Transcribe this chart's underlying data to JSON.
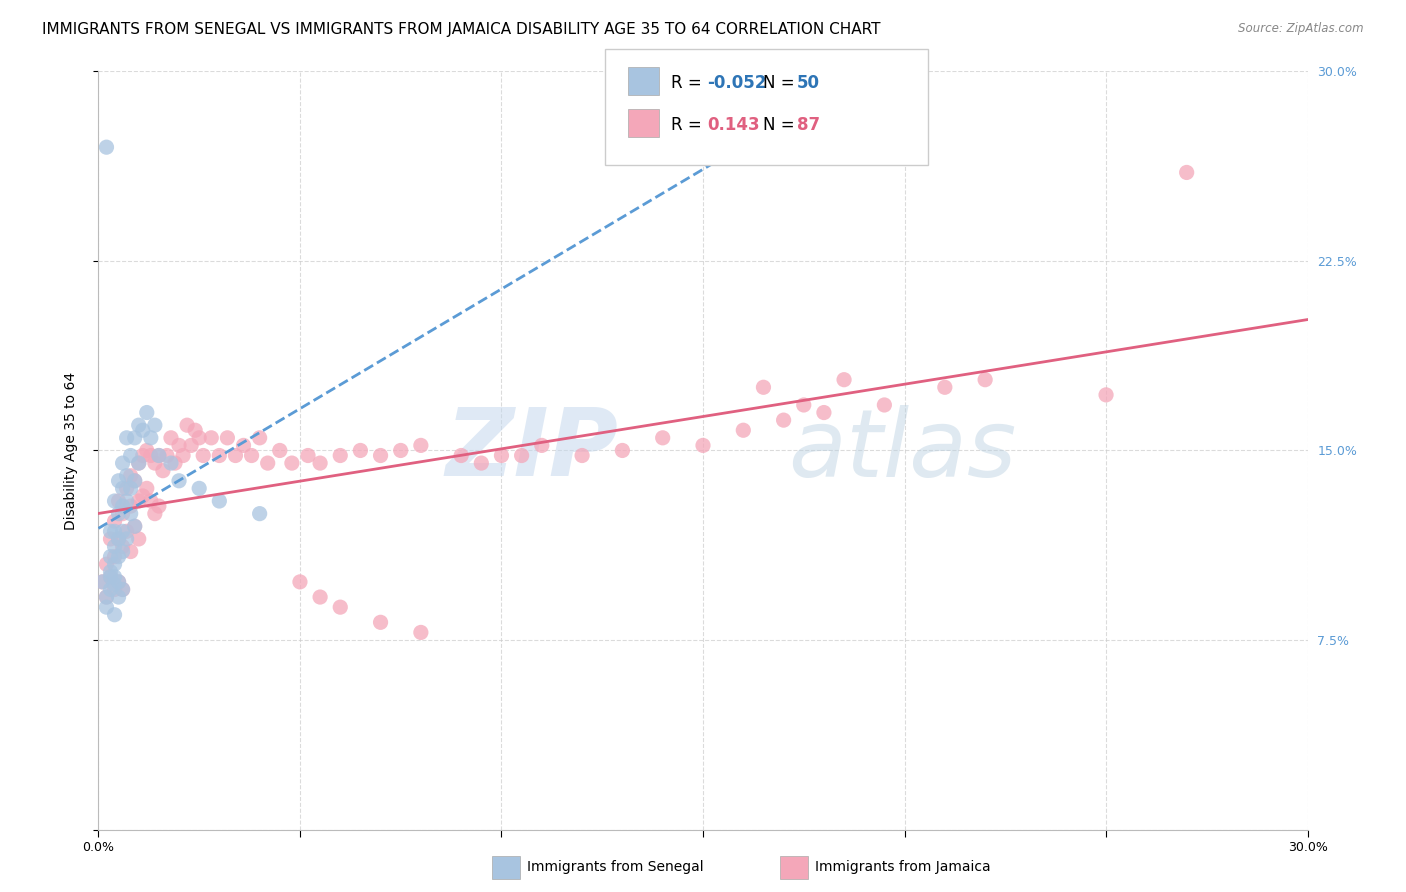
{
  "title": "IMMIGRANTS FROM SENEGAL VS IMMIGRANTS FROM JAMAICA DISABILITY AGE 35 TO 64 CORRELATION CHART",
  "source": "Source: ZipAtlas.com",
  "ylabel": "Disability Age 35 to 64",
  "xlim": [
    0.0,
    0.3
  ],
  "ylim": [
    0.0,
    0.3
  ],
  "color_senegal": "#a8c4e0",
  "color_jamaica": "#f4a7b9",
  "line_color_senegal": "#5b9bd5",
  "line_color_jamaica": "#e06080",
  "R_senegal": -0.052,
  "N_senegal": 50,
  "R_jamaica": 0.143,
  "N_jamaica": 87,
  "watermark_color": "#c8d8e8",
  "background_color": "#ffffff",
  "grid_color": "#cccccc",
  "title_fontsize": 11,
  "axis_label_fontsize": 10,
  "tick_fontsize": 9,
  "legend_fontsize": 12,
  "right_tick_color": "#5b9bd5",
  "senegal_x": [
    0.001,
    0.002,
    0.002,
    0.003,
    0.003,
    0.003,
    0.003,
    0.003,
    0.004,
    0.004,
    0.004,
    0.004,
    0.004,
    0.004,
    0.004,
    0.005,
    0.005,
    0.005,
    0.005,
    0.005,
    0.005,
    0.006,
    0.006,
    0.006,
    0.006,
    0.006,
    0.006,
    0.007,
    0.007,
    0.007,
    0.007,
    0.008,
    0.008,
    0.008,
    0.009,
    0.009,
    0.009,
    0.01,
    0.01,
    0.011,
    0.012,
    0.013,
    0.014,
    0.015,
    0.018,
    0.02,
    0.025,
    0.03,
    0.04,
    0.002
  ],
  "senegal_y": [
    0.098,
    0.088,
    0.092,
    0.118,
    0.108,
    0.095,
    0.1,
    0.102,
    0.13,
    0.112,
    0.118,
    0.105,
    0.1,
    0.097,
    0.085,
    0.138,
    0.125,
    0.115,
    0.108,
    0.098,
    0.092,
    0.145,
    0.135,
    0.128,
    0.118,
    0.11,
    0.095,
    0.155,
    0.14,
    0.13,
    0.115,
    0.148,
    0.135,
    0.125,
    0.155,
    0.138,
    0.12,
    0.16,
    0.145,
    0.158,
    0.165,
    0.155,
    0.16,
    0.148,
    0.145,
    0.138,
    0.135,
    0.13,
    0.125,
    0.27
  ],
  "jamaica_x": [
    0.001,
    0.002,
    0.002,
    0.003,
    0.003,
    0.004,
    0.004,
    0.004,
    0.005,
    0.005,
    0.005,
    0.006,
    0.006,
    0.006,
    0.007,
    0.007,
    0.008,
    0.008,
    0.008,
    0.009,
    0.009,
    0.01,
    0.01,
    0.01,
    0.011,
    0.011,
    0.012,
    0.012,
    0.013,
    0.013,
    0.014,
    0.014,
    0.015,
    0.015,
    0.016,
    0.017,
    0.018,
    0.019,
    0.02,
    0.021,
    0.022,
    0.023,
    0.024,
    0.025,
    0.026,
    0.028,
    0.03,
    0.032,
    0.034,
    0.036,
    0.038,
    0.04,
    0.042,
    0.045,
    0.048,
    0.052,
    0.055,
    0.06,
    0.065,
    0.07,
    0.075,
    0.08,
    0.09,
    0.1,
    0.11,
    0.12,
    0.13,
    0.14,
    0.15,
    0.16,
    0.17,
    0.18,
    0.195,
    0.21,
    0.22,
    0.25,
    0.27,
    0.165,
    0.175,
    0.185,
    0.095,
    0.105,
    0.05,
    0.055,
    0.06,
    0.07,
    0.08
  ],
  "jamaica_y": [
    0.098,
    0.092,
    0.105,
    0.115,
    0.1,
    0.122,
    0.108,
    0.095,
    0.13,
    0.115,
    0.098,
    0.125,
    0.112,
    0.095,
    0.135,
    0.118,
    0.14,
    0.128,
    0.11,
    0.138,
    0.12,
    0.145,
    0.13,
    0.115,
    0.148,
    0.132,
    0.15,
    0.135,
    0.148,
    0.13,
    0.145,
    0.125,
    0.148,
    0.128,
    0.142,
    0.148,
    0.155,
    0.145,
    0.152,
    0.148,
    0.16,
    0.152,
    0.158,
    0.155,
    0.148,
    0.155,
    0.148,
    0.155,
    0.148,
    0.152,
    0.148,
    0.155,
    0.145,
    0.15,
    0.145,
    0.148,
    0.145,
    0.148,
    0.15,
    0.148,
    0.15,
    0.152,
    0.148,
    0.148,
    0.152,
    0.148,
    0.15,
    0.155,
    0.152,
    0.158,
    0.162,
    0.165,
    0.168,
    0.175,
    0.178,
    0.172,
    0.26,
    0.175,
    0.168,
    0.178,
    0.145,
    0.148,
    0.098,
    0.092,
    0.088,
    0.082,
    0.078
  ]
}
